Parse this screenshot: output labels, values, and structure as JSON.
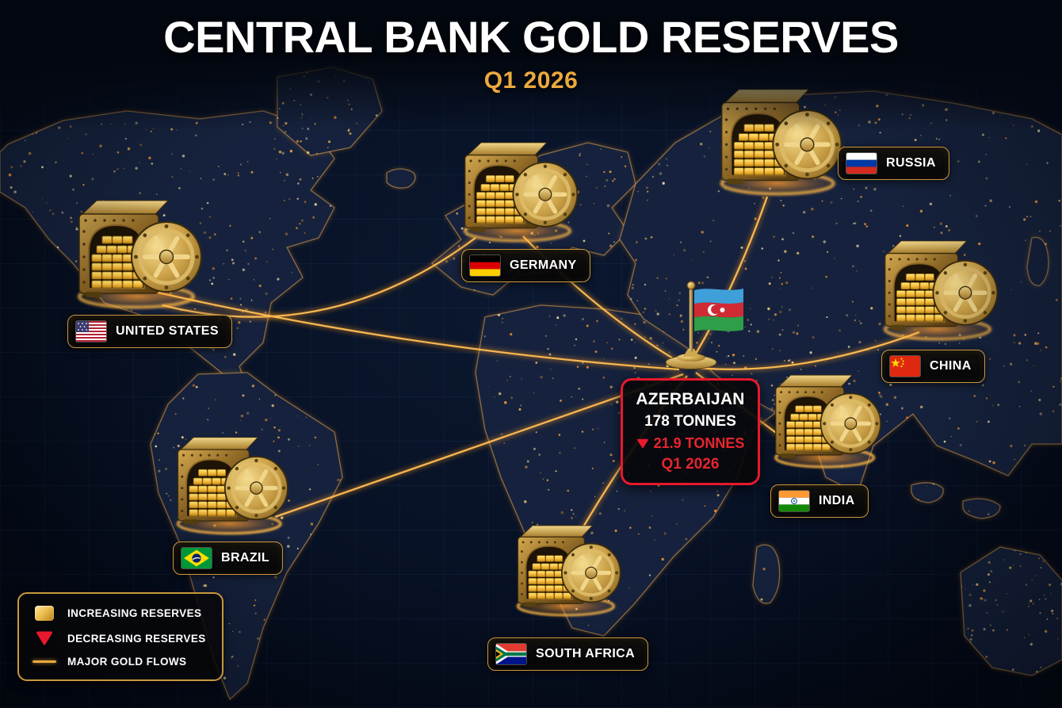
{
  "header": {
    "title": "CENTRAL BANK GOLD RESERVES",
    "subtitle": "Q1 2026"
  },
  "countries": [
    {
      "id": "united-states",
      "label": "UNITED STATES"
    },
    {
      "id": "germany",
      "label": "GERMANY"
    },
    {
      "id": "russia",
      "label": "RUSSIA"
    },
    {
      "id": "china",
      "label": "CHINA"
    },
    {
      "id": "india",
      "label": "INDIA"
    },
    {
      "id": "brazil",
      "label": "BRAZIL"
    },
    {
      "id": "south-africa",
      "label": "SOUTH AFRICA"
    }
  ],
  "focus": {
    "country": "AZERBAIJAN",
    "reserves": "178 TONNES",
    "change_marker": "decrease-triangle",
    "change": "21.9 TONNES",
    "change_direction": "decreasing",
    "period": "Q1 2026"
  },
  "legend": {
    "items": [
      {
        "marker": "gold-bar",
        "label": "INCREASING RESERVES"
      },
      {
        "marker": "red-triangle",
        "label": "DECREASING RESERVES"
      },
      {
        "marker": "gold-line",
        "label": "MAJOR GOLD FLOWS"
      }
    ]
  },
  "colors": {
    "accent_gold": "#eca93d",
    "alert_red": "#e8192c",
    "label_border_gold": "#c9973c",
    "background_navy": "#081226"
  }
}
